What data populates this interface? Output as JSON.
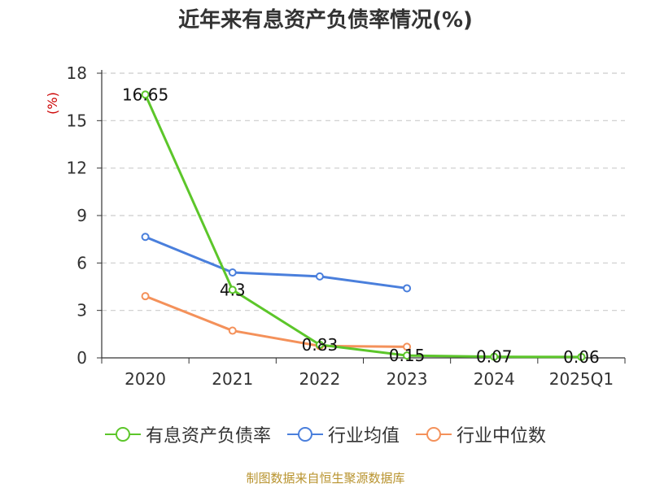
{
  "chart_data": {
    "type": "line",
    "title": "近年来有息资产负债率情况(%)",
    "ylabel": "(%)",
    "xlabel": "",
    "ylim": [
      0,
      18
    ],
    "yticks": [
      0,
      3,
      6,
      9,
      12,
      15,
      18
    ],
    "categories": [
      "2020",
      "2021",
      "2022",
      "2023",
      "2024",
      "2025Q1"
    ],
    "grid": true,
    "legend_position": "bottom",
    "series": [
      {
        "name": "有息资产负债率",
        "color": "#5cc62a",
        "values": [
          16.65,
          4.3,
          0.83,
          0.15,
          0.07,
          0.06
        ],
        "labels": [
          "16.65",
          "4.3",
          "0.83",
          "0.15",
          "0.07",
          "0.06"
        ]
      },
      {
        "name": "行业均值",
        "color": "#4a7fdc",
        "values": [
          7.65,
          5.4,
          5.15,
          4.4,
          null,
          null
        ]
      },
      {
        "name": "行业中位数",
        "color": "#f4915a",
        "values": [
          3.9,
          1.72,
          0.75,
          0.7,
          null,
          null
        ]
      }
    ]
  },
  "source": "制图数据来自恒生聚源数据库",
  "colors": {
    "axis": "#333333",
    "grid": "#cccccc",
    "ylabel": "#cc0000",
    "source": "#b8932e"
  }
}
